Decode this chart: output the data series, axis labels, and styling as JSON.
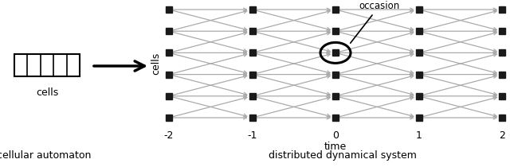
{
  "bg_color": "#ffffff",
  "num_cells": 5,
  "cells_label": "cells",
  "ca_label": "cellular automaton",
  "dds_label": "distributed dynamical system",
  "time_ticks": [
    -2,
    -1,
    0,
    1,
    2
  ],
  "num_rows": 6,
  "node_color": "#1a1a1a",
  "arrow_color": "#aaaaaa",
  "occasion_label": "occasion",
  "time_label": "time",
  "cells_axis_label": "cells",
  "occasion_row": 2,
  "occasion_t": 0
}
